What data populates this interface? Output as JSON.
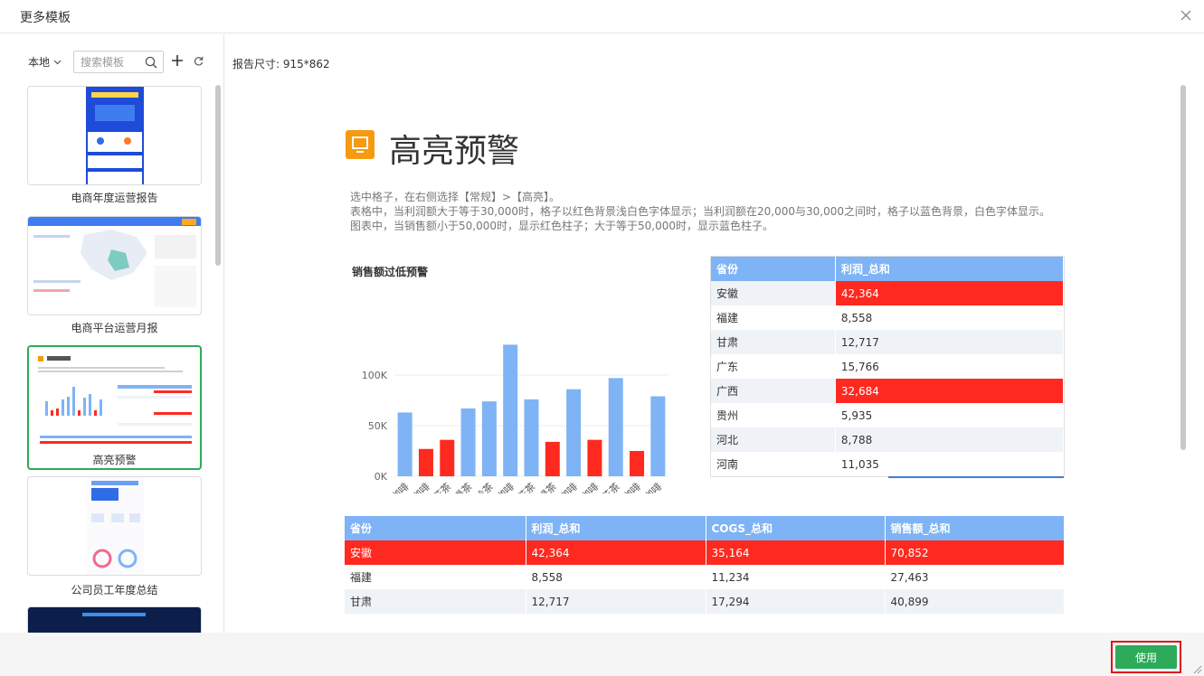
{
  "dialog": {
    "title": "更多模板"
  },
  "left": {
    "source_label": "本地",
    "search_placeholder": "搜索模板",
    "templates": [
      {
        "name": "电商年度运营报告"
      },
      {
        "name": "电商平台运营月报"
      },
      {
        "name": "高亮预警"
      },
      {
        "name": "公司员工年度总结"
      }
    ]
  },
  "preview": {
    "report_size": "报告尺寸: 915*862",
    "report_title": "高亮预警",
    "desc_lines": [
      "选中格子，在右侧选择【常规】>【高亮】。",
      "表格中，当利润额大于等于30,000时，格子以红色背景浅白色字体显示；当利润额在20,000与30,000之间时，格子以蓝色背景，白色字体显示。",
      "图表中，当销售额小于50,000时，显示红色柱子；大于等于50,000时，显示蓝色柱子。"
    ]
  },
  "chart_data": {
    "type": "bar",
    "title": "销售额过低预警",
    "categories": [
      "爱尔兰咖啡",
      "安摩拉多咖啡",
      "薄荷花茶",
      "伯爵茶",
      "大吉岭茶",
      "哥伦比亚咖啡",
      "黄春菊花茶",
      "绿茶",
      "摩卡咖啡",
      "拿铁咖啡",
      "柠檬花茶",
      "香草浓缩咖啡",
      "无咖啡因咖啡"
    ],
    "values": [
      63000,
      27000,
      36000,
      67000,
      74000,
      130000,
      76000,
      34000,
      86000,
      36000,
      97000,
      25000,
      79000
    ],
    "y_ticks": [
      "100K",
      "50K",
      "0K"
    ],
    "ylim": [
      0,
      130000
    ],
    "threshold": 50000,
    "colors": {
      "above": "#7eb3f6",
      "below": "#ff2a1f"
    }
  },
  "side_table": {
    "headers": [
      "省份",
      "利润_总和"
    ],
    "rows": [
      [
        "安徽",
        "42,364"
      ],
      [
        "福建",
        "8,558"
      ],
      [
        "甘肃",
        "12,717"
      ],
      [
        "广东",
        "15,766"
      ],
      [
        "广西",
        "32,684"
      ],
      [
        "贵州",
        "5,935"
      ],
      [
        "河北",
        "8,788"
      ],
      [
        "河南",
        "11,035"
      ]
    ]
  },
  "bottom_table": {
    "headers": [
      "省份",
      "利润_总和",
      "COGS_总和",
      "销售额_总和"
    ],
    "rows": [
      [
        "安徽",
        "42,364",
        "35,164",
        "70,852"
      ],
      [
        "福建",
        "8,558",
        "11,234",
        "27,463"
      ],
      [
        "甘肃",
        "12,717",
        "17,294",
        "40,899"
      ]
    ]
  },
  "footer": {
    "use_label": "使用"
  },
  "colors": {
    "accent_green": "#2daa5a",
    "highlight_red": "#ff2a1f",
    "header_blue": "#7eb3f6",
    "icon_orange": "#f59a11"
  }
}
